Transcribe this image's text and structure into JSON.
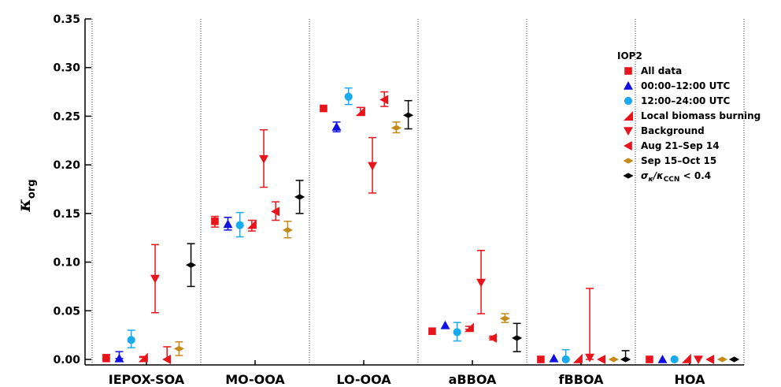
{
  "chart_data": {
    "type": "scatter",
    "ylabel": {
      "main": "κ",
      "sub": "org"
    },
    "ylim": [
      0,
      0.35
    ],
    "yticks": [
      "0.00",
      "0.05",
      "0.10",
      "0.15",
      "0.20",
      "0.25",
      "0.30",
      "0.35"
    ],
    "ytick_values": [
      0,
      0.05,
      0.1,
      0.15,
      0.2,
      0.25,
      0.3,
      0.35
    ],
    "categories": [
      "IEPOX-SOA",
      "MO-OOA",
      "LO-OOA",
      "aBBOA",
      "fBBOA",
      "HOA"
    ],
    "grid": "vertical dotted separators between categories",
    "legend": {
      "title": "IOP2",
      "placement": "top-right",
      "entries": [
        {
          "label": "All data",
          "color": "#e8141c",
          "marker": "square"
        },
        {
          "label": "00:00–12:00 UTC",
          "color": "#1010e0",
          "marker": "triangle-up"
        },
        {
          "label": "12:00–24:00 UTC",
          "color": "#1aabee",
          "marker": "circle"
        },
        {
          "label": "Local biomass burning",
          "color": "#e8141c",
          "marker": "triangle-right-corner"
        },
        {
          "label": "Background",
          "color": "#e8141c",
          "marker": "triangle-down"
        },
        {
          "label": "Aug 21–Sep 14",
          "color": "#e8141c",
          "marker": "triangle-left"
        },
        {
          "label": "Sep 15–Oct 15",
          "color": "#c48a1a",
          "marker": "diamond-wide"
        },
        {
          "label_main": "σ",
          "label_sub1": "κ",
          "label_mid": "/κ",
          "label_sub2": "CCN",
          "label_tail": " < 0.4",
          "color": "#000000",
          "marker": "diamond-wide"
        }
      ]
    },
    "series": [
      {
        "name": "All data",
        "values": [
          0.001,
          0.142,
          0.258,
          0.029,
          0.0,
          0.0
        ],
        "err_low": [
          0.001,
          0.136,
          0.258,
          0.029,
          0.0,
          0.0
        ],
        "err_high": [
          0.005,
          0.147,
          0.258,
          0.029,
          0.0,
          0.0
        ]
      },
      {
        "name": "00:00–12:00 UTC",
        "values": [
          0.001,
          0.139,
          0.239,
          0.035,
          0.001,
          0.0
        ],
        "err_low": [
          0.001,
          0.133,
          0.234,
          0.035,
          0.001,
          0.0
        ],
        "err_high": [
          0.008,
          0.146,
          0.244,
          0.035,
          0.001,
          0.0
        ]
      },
      {
        "name": "12:00–24:00 UTC",
        "values": [
          0.02,
          0.138,
          0.27,
          0.028,
          0.0,
          0.0
        ],
        "err_low": [
          0.012,
          0.126,
          0.262,
          0.019,
          0.0,
          0.0
        ],
        "err_high": [
          0.03,
          0.151,
          0.279,
          0.038,
          0.01,
          0.0
        ]
      },
      {
        "name": "Local biomass burning",
        "values": [
          0.002,
          0.139,
          0.255,
          0.033,
          0.001,
          0.001
        ],
        "err_low": [
          0.002,
          0.132,
          0.251,
          0.031,
          0.001,
          0.001
        ],
        "err_high": [
          0.003,
          0.143,
          0.259,
          0.034,
          0.001,
          0.001
        ]
      },
      {
        "name": "Background",
        "values": [
          0.083,
          0.206,
          0.199,
          0.079,
          0.002,
          0.0
        ],
        "err_low": [
          0.048,
          0.177,
          0.171,
          0.047,
          0.0,
          0.0
        ],
        "err_high": [
          0.118,
          0.236,
          0.228,
          0.112,
          0.073,
          0.0
        ]
      },
      {
        "name": "Aug 21–Sep 14",
        "values": [
          0.0,
          0.152,
          0.267,
          0.022,
          0.0,
          0.0
        ],
        "err_low": [
          0.0,
          0.143,
          0.26,
          0.02,
          0.0,
          0.0
        ],
        "err_high": [
          0.013,
          0.162,
          0.275,
          0.024,
          0.0,
          0.0
        ]
      },
      {
        "name": "Sep 15–Oct 15",
        "values": [
          0.011,
          0.133,
          0.238,
          0.042,
          0.0,
          0.0
        ],
        "err_low": [
          0.004,
          0.125,
          0.233,
          0.038,
          0.0,
          0.0
        ],
        "err_high": [
          0.018,
          0.142,
          0.244,
          0.047,
          0.0,
          0.0
        ]
      },
      {
        "name": "σκ/κCCN < 0.4",
        "values": [
          0.097,
          0.167,
          0.251,
          0.022,
          0.0,
          0.0
        ],
        "err_low": [
          0.075,
          0.15,
          0.237,
          0.008,
          0.0,
          0.0
        ],
        "err_high": [
          0.119,
          0.184,
          0.266,
          0.037,
          0.009,
          0.0
        ]
      }
    ]
  }
}
